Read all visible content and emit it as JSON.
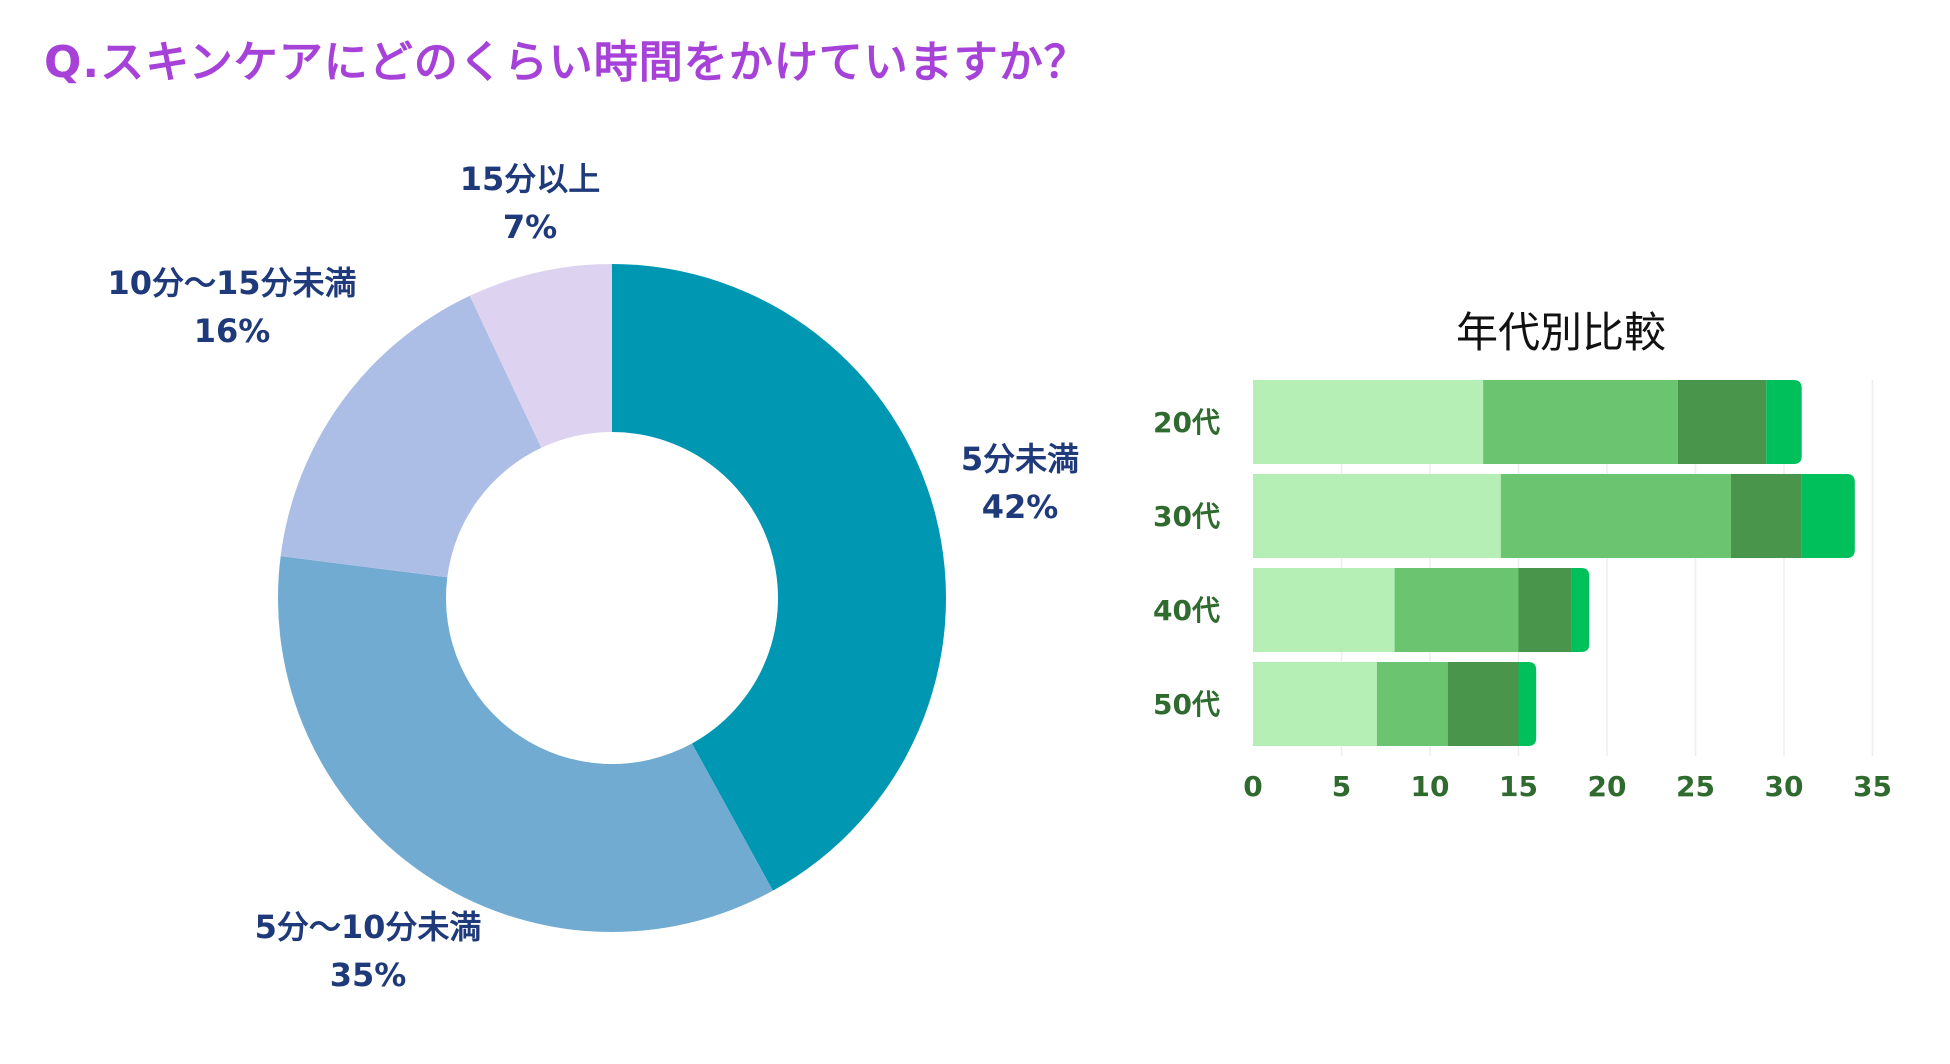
{
  "title": "Q.スキンケアにどのくらい時間をかけていますか？",
  "chart_data": [
    {
      "type": "pie",
      "variant": "donut",
      "labels": [
        "5分未満",
        "5分～10分未満",
        "10分～15分未満",
        "15分以上"
      ],
      "values": [
        42,
        35,
        16,
        7
      ],
      "value_labels": [
        "42%",
        "35%",
        "16%",
        "7%"
      ],
      "colors": [
        "#0097b2",
        "#72abd2",
        "#adbee6",
        "#ddd3f1"
      ]
    },
    {
      "type": "bar",
      "orientation": "horizontal",
      "stacked": true,
      "title": "年代別比較",
      "categories": [
        "20代",
        "30代",
        "40代",
        "50代"
      ],
      "series": [
        {
          "name": "5分未満",
          "values": [
            13,
            14,
            8,
            7
          ],
          "color": "#b5efb5"
        },
        {
          "name": "5分～10分未満",
          "values": [
            11,
            13,
            7,
            4
          ],
          "color": "#6bc46f"
        },
        {
          "name": "10分～15分未満",
          "values": [
            5,
            4,
            3,
            4
          ],
          "color": "#48954b"
        },
        {
          "name": "15分以上",
          "values": [
            2,
            3,
            1,
            1
          ],
          "color": "#00c05b"
        }
      ],
      "xlim": [
        0,
        35
      ],
      "xticks": [
        0,
        5,
        10,
        15,
        20,
        25,
        30,
        35
      ],
      "xtick_labels": [
        "0",
        "5",
        "10",
        "15",
        "20",
        "25",
        "30",
        "35"
      ]
    }
  ]
}
